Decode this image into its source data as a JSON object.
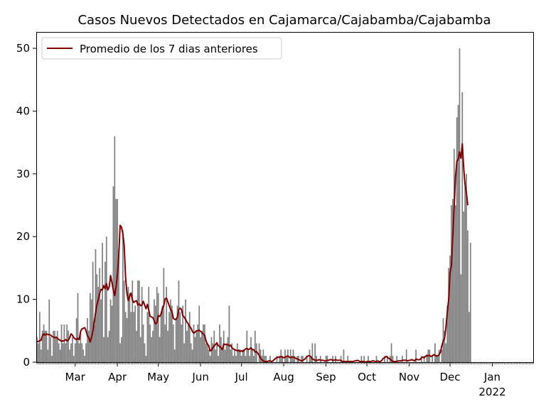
{
  "chart_data": {
    "type": "bar",
    "title": "Casos Nuevos Detectados en Cajamarca/Cajabamba/Cajabamba",
    "xlabel": "",
    "ylabel": "",
    "x_range": [
      "2021-02-01",
      "2022-01-31"
    ],
    "ylim": [
      0,
      52.5
    ],
    "yticks": [
      0,
      10,
      20,
      30,
      40,
      50
    ],
    "xticks": [
      {
        "date": "2021-03-01",
        "label": "Mar"
      },
      {
        "date": "2021-04-01",
        "label": "Apr"
      },
      {
        "date": "2021-05-01",
        "label": "May"
      },
      {
        "date": "2021-06-01",
        "label": "Jun"
      },
      {
        "date": "2021-07-01",
        "label": "Jul"
      },
      {
        "date": "2021-08-01",
        "label": "Aug"
      },
      {
        "date": "2021-09-01",
        "label": "Sep"
      },
      {
        "date": "2021-10-01",
        "label": "Oct"
      },
      {
        "date": "2021-11-01",
        "label": "Nov"
      },
      {
        "date": "2021-12-01",
        "label": "Dec"
      },
      {
        "date": "2022-01-01",
        "label": "Jan",
        "sublabel": "2022"
      }
    ],
    "grid": false,
    "legend": {
      "position": "top-left",
      "entries": [
        "Promedio de los 7 dias anteriores"
      ]
    },
    "colors": {
      "bars": "#808080",
      "line": "#800000"
    },
    "series": [
      {
        "type": "bar",
        "start_date": "2021-02-01",
        "values": [
          4,
          3,
          8,
          2,
          5,
          6,
          5,
          5,
          2,
          10,
          4,
          1,
          5,
          5,
          4,
          5,
          3,
          2,
          6,
          3,
          6,
          3,
          6,
          5,
          2,
          3,
          4,
          1,
          3,
          7,
          11,
          3,
          5,
          3,
          2,
          1,
          3,
          7,
          5,
          11,
          10,
          16,
          6,
          18,
          14,
          12,
          15,
          10,
          19,
          4,
          16,
          20,
          4,
          5,
          10,
          9,
          28,
          36,
          26,
          26,
          18,
          3,
          4,
          21,
          13,
          8,
          7,
          12,
          11,
          8,
          13,
          8,
          9,
          5,
          13,
          13,
          4,
          12,
          6,
          3,
          1,
          8,
          12,
          6,
          4,
          5,
          10,
          9,
          12,
          11,
          4,
          8,
          9,
          15,
          6,
          12,
          5,
          8,
          10,
          9,
          6,
          2,
          7,
          9,
          13,
          8,
          6,
          9,
          3,
          10,
          5,
          6,
          8,
          3,
          2,
          6,
          4,
          5,
          6,
          9,
          4,
          5,
          6,
          6,
          3,
          3,
          2,
          1,
          4,
          3,
          5,
          2,
          3,
          1,
          6,
          4,
          2,
          5,
          2,
          3,
          4,
          9,
          2,
          3,
          1,
          2,
          1,
          3,
          2,
          2,
          1,
          2,
          2,
          1,
          5,
          2,
          1,
          4,
          2,
          1,
          5,
          3,
          0,
          3,
          2,
          1,
          2,
          1,
          1,
          0,
          0,
          1,
          0,
          0,
          0,
          0,
          1,
          0,
          1,
          2,
          1,
          0,
          2,
          1,
          2,
          0,
          2,
          1,
          2,
          1,
          0,
          1,
          1,
          0,
          1,
          1,
          0,
          0,
          1,
          0,
          2,
          1,
          3,
          0,
          3,
          1,
          0,
          0,
          1,
          0,
          0,
          0,
          1,
          1,
          0,
          0,
          0,
          1,
          0,
          1,
          0,
          0,
          0,
          1,
          0,
          2,
          0,
          0,
          1,
          0,
          0,
          0,
          0,
          0,
          0,
          0,
          0,
          0,
          1,
          0,
          1,
          0,
          0,
          1,
          0,
          0,
          0,
          0,
          0,
          1,
          0,
          0,
          0,
          0,
          0,
          1,
          0,
          1,
          0,
          1,
          3,
          1,
          0,
          0,
          1,
          0,
          0,
          0,
          1,
          0,
          0,
          2,
          0,
          0,
          0,
          0,
          0,
          0,
          2,
          0,
          0,
          0,
          1,
          0,
          1,
          0,
          1,
          2,
          2,
          0,
          1,
          0,
          3,
          1,
          1,
          2,
          0,
          2,
          7,
          5,
          3,
          9,
          15,
          17,
          25,
          26,
          34,
          25,
          39,
          41,
          50,
          14,
          43,
          24,
          28,
          30,
          21,
          8,
          19
        ]
      },
      {
        "type": "line",
        "name": "Promedio de los 7 dias anteriores",
        "start_date": "2021-02-01",
        "values": [
          3.3,
          3.3,
          3.4,
          3.5,
          4.2,
          4.5,
          4.3,
          4.5,
          4.4,
          4.4,
          4.3,
          4.1,
          4.0,
          3.9,
          4.0,
          3.8,
          3.6,
          3.5,
          3.3,
          3.4,
          3.4,
          3.6,
          3.4,
          3.5,
          3.9,
          4.5,
          4.3,
          3.9,
          3.7,
          3.6,
          3.8,
          3.6,
          4.9,
          5.3,
          5.4,
          5.5,
          5.0,
          4.2,
          3.9,
          3.2,
          3.9,
          4.9,
          6.4,
          7.9,
          9.2,
          10.0,
          11.0,
          11.6,
          11.5,
          12.2,
          11.7,
          12.5,
          11.5,
          12.0,
          13.8,
          12.7,
          11.5,
          10.6,
          12.0,
          14.0,
          17.0,
          21.8,
          21.5,
          20.5,
          18.5,
          13.5,
          11.0,
          9.8,
          10.5,
          11.0,
          9.9,
          9.5,
          9.7,
          9.8,
          9.1,
          9.3,
          9.0,
          9.1,
          9.7,
          9.1,
          8.5,
          9.2,
          8.3,
          7.3,
          7.2,
          7.1,
          6.6,
          6.1,
          6.3,
          7.4,
          7.3,
          7.6,
          8.6,
          9.0,
          10.1,
          10.2,
          9.6,
          9.0,
          8.4,
          8.1,
          7.0,
          6.8,
          6.8,
          7.2,
          8.4,
          8.6,
          8.4,
          7.4,
          7.2,
          6.8,
          6.4,
          6.1,
          5.7,
          5.4,
          4.9,
          4.6,
          4.8,
          5.0,
          5.0,
          5.1,
          4.9,
          4.7,
          4.5,
          4.3,
          3.4,
          2.9,
          2.6,
          1.8,
          1.9,
          2.3,
          2.6,
          2.8,
          3.1,
          2.6,
          2.5,
          2.3,
          2.0,
          2.9,
          2.8,
          2.8,
          2.8,
          2.6,
          2.7,
          2.3,
          2.1,
          2.0,
          1.9,
          1.8,
          1.9,
          1.7,
          1.8,
          1.7,
          1.9,
          2.1,
          2.2,
          2.0,
          2.1,
          2.3,
          2.0,
          2.0,
          1.6,
          1.7,
          1.4,
          1.1,
          0.6,
          0.4,
          0.2,
          0.1,
          0.1,
          0.1,
          0.2,
          0.2,
          0.1,
          0.2,
          0.4,
          0.6,
          0.7,
          0.8,
          0.8,
          0.9,
          0.8,
          0.7,
          0.8,
          0.9,
          1.0,
          0.8,
          0.7,
          0.8,
          0.8,
          0.7,
          0.6,
          0.5,
          0.4,
          0.3,
          0.2,
          0.3,
          0.4,
          0.6,
          0.9,
          1.0,
          1.0,
          0.8,
          0.5,
          0.4,
          0.3,
          0.3,
          0.3,
          0.4,
          0.3,
          0.3,
          0.3,
          0.2,
          0.2,
          0.3,
          0.3,
          0.4,
          0.4,
          0.3,
          0.3,
          0.4,
          0.3,
          0.3,
          0.3,
          0.3,
          0.1,
          0.1,
          0.1,
          0.1,
          0.1,
          0.1,
          0.1,
          0.1,
          0.1,
          0.2,
          0.2,
          0.3,
          0.2,
          0.1,
          0.1,
          0.1,
          0.1,
          0.0,
          0.1,
          0.1,
          0.1,
          0.1,
          0.2,
          0.2,
          0.1,
          0.1,
          0.2,
          0.1,
          0.1,
          0.3,
          0.6,
          0.7,
          0.9,
          0.8,
          0.6,
          0.5,
          0.3,
          0.1,
          0.1,
          0.1,
          0.1,
          0.2,
          0.2,
          0.2,
          0.3,
          0.3,
          0.3,
          0.3,
          0.2,
          0.3,
          0.3,
          0.4,
          0.3,
          0.2,
          0.5,
          0.4,
          0.4,
          0.4,
          0.7,
          0.8,
          0.7,
          0.9,
          1.1,
          1.0,
          1.1,
          0.9,
          1.0,
          1.2,
          1.1,
          1.0,
          1.0,
          1.2,
          1.6,
          2.6,
          3.4,
          3.8,
          5.6,
          8.0,
          10.0,
          14.2,
          15.4,
          20.0,
          24.5,
          29.5,
          32.0,
          32.3,
          33.5,
          32.5,
          34.8,
          31.0,
          28.3,
          27.0,
          25.0
        ]
      }
    ]
  }
}
